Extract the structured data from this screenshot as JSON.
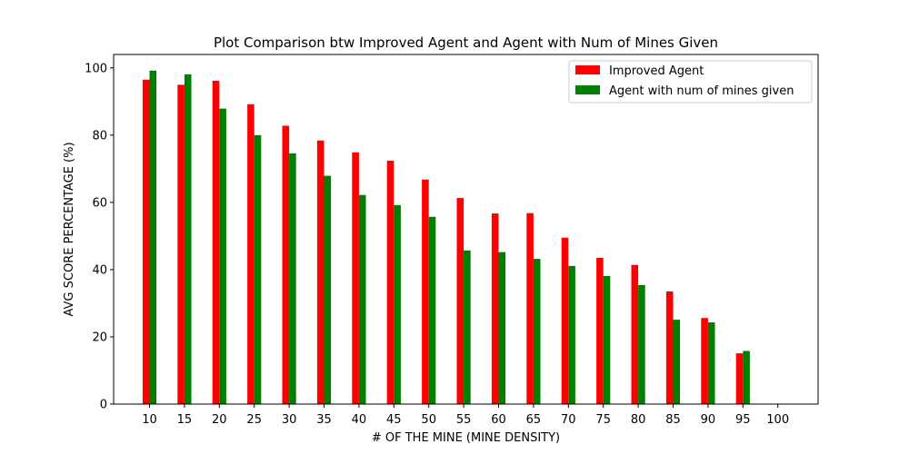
{
  "chart_data": {
    "type": "bar",
    "title": "Plot Comparison btw Improved Agent and Agent with Num of Mines Given",
    "xlabel": "# OF THE MINE (MINE DENSITY)",
    "ylabel": "AVG SCORE PERCENTAGE (%)",
    "categories": [
      "10",
      "15",
      "20",
      "25",
      "30",
      "35",
      "40",
      "45",
      "50",
      "55",
      "60",
      "65",
      "70",
      "75",
      "80",
      "85",
      "90",
      "95",
      "100"
    ],
    "ylim": [
      0,
      104
    ],
    "yticks": [
      0,
      20,
      40,
      60,
      80,
      100
    ],
    "grid": false,
    "legend_position": "top-right",
    "series": [
      {
        "name": "Improved Agent",
        "color": "#ff0000",
        "values": [
          96.5,
          95,
          96.2,
          89.2,
          82.8,
          78.4,
          74.9,
          72.4,
          66.8,
          61.3,
          56.7,
          56.8,
          49.5,
          43.5,
          41.4,
          33.5,
          25.6,
          15.1,
          0
        ]
      },
      {
        "name": "Agent with num of mines given",
        "color": "#008000",
        "values": [
          99.2,
          98.1,
          87.9,
          80.0,
          74.6,
          67.9,
          62.2,
          59.2,
          55.7,
          45.7,
          45.2,
          43.2,
          41.1,
          38.1,
          35.4,
          25.1,
          24.3,
          15.8,
          0
        ]
      }
    ]
  }
}
